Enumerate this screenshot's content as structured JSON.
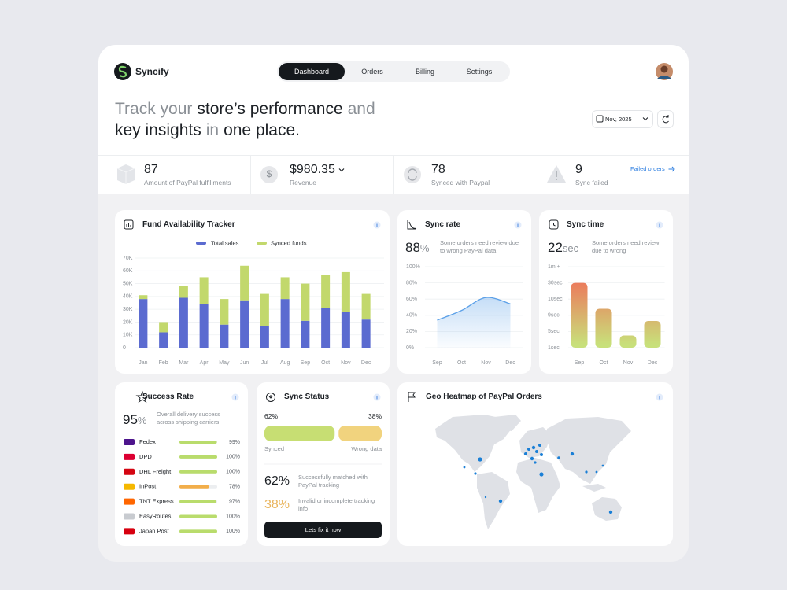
{
  "brand": "Syncify",
  "nav": {
    "items": [
      "Dashboard",
      "Orders",
      "Billing",
      "Settings"
    ],
    "active": 0
  },
  "headline": {
    "lines": [
      [
        {
          "text": "Track your",
          "muted": true
        },
        {
          "text": "store’s performance",
          "muted": false
        },
        {
          "text": "and",
          "muted": true
        }
      ],
      [
        {
          "text": "key insights",
          "muted": false
        },
        {
          "text": "in",
          "muted": true
        },
        {
          "text": "one place.",
          "muted": false
        }
      ]
    ]
  },
  "date_picker": "Nov, 2025",
  "stats": [
    {
      "value": 87,
      "label": "Amount of PayPal fulfillments"
    },
    {
      "value": "$980.35",
      "label": "Revenue"
    },
    {
      "value": 78,
      "label": "Synced with Paypal"
    },
    {
      "value": 9,
      "label": "Sync failed",
      "link": "Failed orders"
    }
  ],
  "chart_data": [
    {
      "type": "bar",
      "stacked": true,
      "title": "Fund Availability Tracker",
      "categories": [
        "Jan",
        "Feb",
        "Mar",
        "Apr",
        "May",
        "Jun",
        "Jul",
        "Aug",
        "Sep",
        "Oct",
        "Nov",
        "Dec"
      ],
      "series": [
        {
          "name": "Total sales",
          "color": "#5b6bd0",
          "values": [
            38000,
            12000,
            39000,
            34000,
            18000,
            37000,
            17000,
            38000,
            21000,
            31000,
            28000,
            22000
          ]
        },
        {
          "name": "Synced funds",
          "color": "#c2d86c",
          "values": [
            3000,
            8000,
            9000,
            21000,
            20000,
            27000,
            25000,
            17000,
            29000,
            26000,
            31000,
            20000
          ]
        }
      ],
      "ylim": [
        0,
        70000
      ],
      "yticks": [
        0,
        {
          "value": 10000,
          "label": "10K"
        },
        {
          "value": 20000,
          "label": "20K"
        },
        {
          "value": 30000,
          "label": "30K"
        },
        {
          "value": 40000,
          "label": "40K"
        },
        {
          "value": 50000,
          "label": "50K"
        },
        {
          "value": 60000,
          "label": "60K"
        },
        {
          "value": 70000,
          "label": "70K"
        }
      ],
      "grid": true
    },
    {
      "type": "area",
      "title": "Sync rate",
      "value": 88,
      "unit": "%",
      "note": "Some orders need review due to wrong PayPal data",
      "categories": [
        "Sep",
        "Oct",
        "Nov",
        "Dec"
      ],
      "values": [
        34,
        46,
        62,
        54
      ],
      "color": "#5ba0e8",
      "ylim": [
        0,
        100
      ],
      "yticks": [
        {
          "value": 0,
          "label": "0%"
        },
        {
          "value": 20,
          "label": "20%"
        },
        {
          "value": 40,
          "label": "40%"
        },
        {
          "value": 60,
          "label": "60%"
        },
        {
          "value": 80,
          "label": "80%"
        },
        {
          "value": 100,
          "label": "100%"
        }
      ],
      "grid": true
    },
    {
      "type": "bar",
      "title": "Sync time",
      "value": 22,
      "unit": "sec",
      "note": "Some orders need review due to wrong",
      "categories": [
        "Sep",
        "Oct",
        "Nov",
        "Dec"
      ],
      "values": [
        30,
        9.4,
        4,
        7.6
      ],
      "colors": [
        "#ec7a5c",
        "#c8e07a"
      ],
      "ylim": [
        1,
        60
      ],
      "yticks": [
        {
          "value": 1,
          "label": "1sec"
        },
        {
          "value": 5,
          "label": "5sec"
        },
        {
          "value": 9,
          "label": "9sec"
        },
        {
          "value": 10,
          "label": "10sec"
        },
        {
          "value": 30,
          "label": "30sec"
        },
        {
          "value": 60,
          "label": "1m +"
        }
      ],
      "grid": true
    },
    {
      "type": "progress",
      "title": "Success Rate",
      "value": 95,
      "unit": "%",
      "note": "Overall delivery success across shipping carriers",
      "categories": [
        "Fedex",
        "DPD",
        "DHL Freight",
        "InPost",
        "TNT Express",
        "EasyRoutes",
        "Japan Post"
      ],
      "values": [
        99,
        100,
        100,
        78,
        97,
        100,
        100
      ],
      "value_labels": [
        "99%",
        "100%",
        "100%",
        "78%",
        "97%",
        "100%",
        "100%"
      ],
      "colors": [
        "#b9dc6c",
        "#b9dc6c",
        "#b9dc6c",
        "#f2ae4a",
        "#b9dc6c",
        "#b9dc6c",
        "#b9dc6c"
      ],
      "xlim": [
        0,
        100
      ]
    },
    {
      "type": "split",
      "title": "Sync Status",
      "series": [
        {
          "name": "Synced",
          "color": "#c7de73",
          "values": [
            62
          ],
          "value_labels": [
            "62%"
          ],
          "note": "Successfully matched with PayPal tracking"
        },
        {
          "name": "Wrong data",
          "color": "#f1d37e",
          "values": [
            38
          ],
          "value_labels": [
            "38%"
          ],
          "note": "Invalid or incomplete tracking info"
        }
      ],
      "xlim": [
        0,
        100
      ],
      "button": "Lets fix it now"
    }
  ],
  "geo_heatmap": {
    "title": "Geo Heatmap of PayPal Orders"
  }
}
